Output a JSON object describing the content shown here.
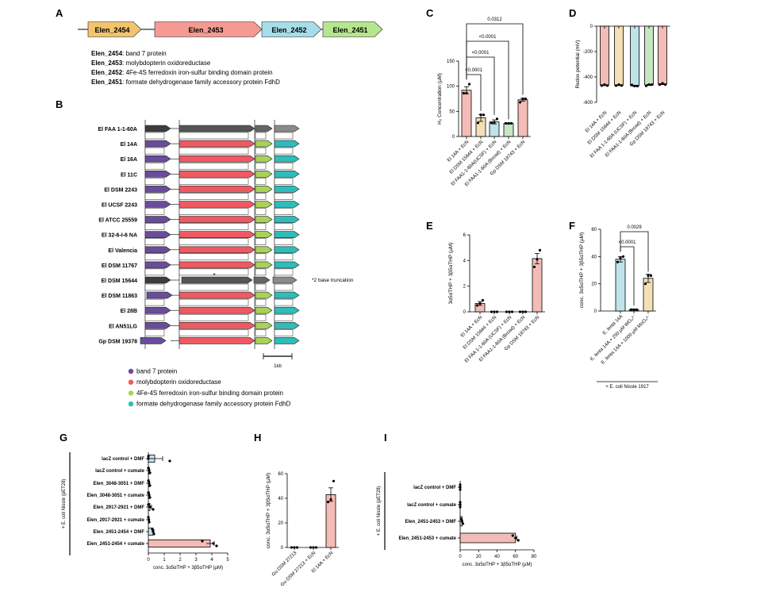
{
  "panel_letters": [
    "A",
    "B",
    "C",
    "D",
    "E",
    "F",
    "G",
    "H",
    "I"
  ],
  "panel_a": {
    "genes": [
      {
        "name": "Elen_2454",
        "color": "#f2c46e"
      },
      {
        "name": "Elen_2453",
        "color": "#f59a93"
      },
      {
        "name": "Elen_2452",
        "color": "#a6dde8"
      },
      {
        "name": "Elen_2451",
        "color": "#b5e68f"
      }
    ],
    "descriptions": [
      {
        "gene": "Elen_2454",
        "text": ": band 7 protein"
      },
      {
        "gene": "Elen_2453",
        "text": ": molybdopterin oxidoreductase"
      },
      {
        "gene": "Elen_2452",
        "text": ": 4Fe-4S ferredoxin iron-sulfur binding domain protein"
      },
      {
        "gene": "Elen_2451",
        "text": ": formate dehydrogenase family accessory protein FdhD"
      }
    ]
  },
  "panel_b": {
    "strains": [
      "El FAA 1-1-60A",
      "El 14A",
      "El 16A",
      "El 11C",
      "El DSM 2243",
      "El UCSF 2243",
      "El ATCC 25559",
      "El 32-6-I-6 NA",
      "El Valencia",
      "El DSM 11767",
      "El DSM 15644",
      "El DSM 11863",
      "El 28B",
      "El AN51LG",
      "Gp DSM 19378"
    ],
    "grey_strains": [
      "El FAA 1-1-60A",
      "El DSM 15644"
    ],
    "asterisk": "*",
    "note": "*2 base truncation",
    "scale_label": "1kb",
    "legend": [
      {
        "label": "band 7 protein",
        "color": "#6a4c9c"
      },
      {
        "label": "molybdopterin oxidoreductase",
        "color": "#ef5a62"
      },
      {
        "label": "4Fe-4S ferredoxin iron-sulfur binding domain protein",
        "color": "#a8d25a"
      },
      {
        "label": "formate dehydrogenase family accessory protein FdhD",
        "color": "#2ebdbb"
      }
    ],
    "grey_colors": [
      "#3d3d3d",
      "#555555",
      "#666666",
      "#8a8a8a"
    ]
  },
  "chart_data": [
    {
      "panel": "C",
      "type": "bar",
      "ylabel": "H₂ Concentration (µM)",
      "ylim": [
        0,
        150
      ],
      "yticks": [
        0,
        50,
        100,
        150
      ],
      "categories": [
        "El 14A + EcN",
        "El DSM 15644 + EcN",
        "El FAA1-1-60A(UCSF) + EcN",
        "El FAA1-1-60A (Broad) + EcN",
        "Gp DSM 19743 + EcN"
      ],
      "values": [
        92,
        37,
        29,
        26,
        73
      ],
      "sem": [
        7,
        7,
        4,
        1,
        3
      ],
      "points": [
        [
          86,
          86,
          104
        ],
        [
          27,
          43,
          43
        ],
        [
          27,
          28,
          35
        ],
        [
          26,
          26,
          26
        ],
        [
          68,
          75,
          75
        ]
      ],
      "colors": [
        "#f4bcb6",
        "#f5dfb8",
        "#bfe3ea",
        "#c9e6c2",
        "#f4bcb6"
      ],
      "comparisons": [
        {
          "from": 0,
          "to": 1,
          "label": "<0.0001"
        },
        {
          "from": 0,
          "to": 2,
          "label": "<0.0001"
        },
        {
          "from": 0,
          "to": 3,
          "label": "<0.0001"
        },
        {
          "from": 0,
          "to": 4,
          "label": "0.0312"
        }
      ]
    },
    {
      "panel": "D",
      "type": "bar",
      "ylabel": "Redox potential (mV)",
      "ylim": [
        -600,
        0
      ],
      "yticks": [
        0,
        -200,
        -400,
        -600
      ],
      "categories": [
        "El 14A + EcN",
        "El DSM 15644 + EcN",
        "El FAA 1-1-60A (UCSF) + EcN",
        "El FAA1-1-60A (Broad) + EcN",
        "Gp DSM 19743 + EcN"
      ],
      "values": [
        -465,
        -465,
        -470,
        -463,
        -457
      ],
      "sem": [
        3,
        3,
        4,
        4,
        3
      ],
      "points": [
        [
          -468,
          -460,
          -468
        ],
        [
          -468,
          -460,
          -467
        ],
        [
          -462,
          -472,
          -472
        ],
        [
          -470,
          -460,
          -460
        ],
        [
          -460,
          -450,
          -460
        ]
      ],
      "colors": [
        "#f4bcb6",
        "#f5dfb8",
        "#bfe3ea",
        "#c9e6c2",
        "#f4bcb6"
      ],
      "comparisons": []
    },
    {
      "panel": "E",
      "type": "bar",
      "ylabel": "3α5αTHP + 3β5αTHP (µM)",
      "ylim": [
        0,
        6
      ],
      "yticks": [
        0,
        2,
        4,
        6
      ],
      "categories": [
        "El 14A + EcN",
        "El DSM 15644 + EcN",
        "El FAA 1-1-60A (UCSF) + EcN",
        "El FAA1-1-60A (Broad) + EcN",
        "Gp DSM 19743 + EcN"
      ],
      "values": [
        0.65,
        0,
        0,
        0,
        4.15
      ],
      "sem": [
        0.15,
        0,
        0,
        0,
        0.4
      ],
      "points": [
        [
          0.5,
          0.65,
          0.9
        ],
        [
          0,
          0,
          0
        ],
        [
          0,
          0,
          0
        ],
        [
          0,
          0,
          0
        ],
        [
          3.5,
          4.1,
          4.8
        ]
      ],
      "colors": [
        "#f4bcb6",
        "#f4bcb6",
        "#f4bcb6",
        "#f4bcb6",
        "#f4bcb6"
      ],
      "comparisons": []
    },
    {
      "panel": "F",
      "type": "bar",
      "ylabel": "conc. 3α5αTHP + 3β5αTHP (µM)",
      "ylim": [
        0,
        60
      ],
      "yticks": [
        0,
        20,
        40,
        60
      ],
      "categories": [
        "E. lenta 14A",
        "E. lenta 14A + 250 µM WO₄²⁻",
        "E. lenta 14A + 1000 µM MoO₄²⁻"
      ],
      "values": [
        38,
        1,
        24
      ],
      "sem": [
        2,
        0.3,
        3
      ],
      "points": [
        [
          36,
          39,
          40
        ],
        [
          1,
          1,
          1
        ],
        [
          20,
          26,
          26
        ]
      ],
      "colors": [
        "#bfe3ea",
        "#bfe3ea",
        "#f5dfb8"
      ],
      "comparisons": [
        {
          "from": 0,
          "to": 1,
          "label": "<0.0001"
        },
        {
          "from": 0,
          "to": 2,
          "label": "0.0029"
        }
      ],
      "group_label": "+ E. coli Nissle 1917"
    },
    {
      "panel": "G",
      "type": "hbar",
      "xlabel": "conc. 3α5αTHP + 3β5αTHP (µM)",
      "xlim": [
        0,
        5
      ],
      "xticks": [
        0,
        1,
        2,
        3,
        4,
        5
      ],
      "categories": [
        "lacZ control + DMF",
        "lacZ control + cumate",
        "Elen_3048-3051 + DMF",
        "Elen_3048-3051 + cumate",
        "Elen_2917-2921 + DMF",
        "Elen_2917-2921 + cumate",
        "Elen_2451-2454 + DMF",
        "Elen_2451-2454 + cumate"
      ],
      "values": [
        0.4,
        0.05,
        0.05,
        0.05,
        0.1,
        0.03,
        0.3,
        3.9
      ],
      "sem": [
        0.5,
        0.03,
        0.03,
        0.03,
        0.1,
        0.02,
        0.05,
        0.25
      ],
      "points": [
        [
          0,
          0,
          1.35
        ],
        [
          0,
          0.05,
          0.1
        ],
        [
          0,
          0.05,
          0.1
        ],
        [
          0,
          0.05,
          0.1
        ],
        [
          0,
          0.1,
          0.3
        ],
        [
          0,
          0.03,
          0.05
        ],
        [
          0.25,
          0.3,
          0.35
        ],
        [
          3.4,
          4.1,
          4.3
        ]
      ],
      "colors": [
        "#bfe3ea",
        "#bfe3ea",
        "#bfe3ea",
        "#bfe3ea",
        "#bfe3ea",
        "#bfe3ea",
        "#bfe3ea",
        "#f4bcb6"
      ],
      "group_label": "+ E. coli Nissle (pET28)"
    },
    {
      "panel": "H",
      "type": "bar",
      "ylabel": "conc. 3α5αTHP + 3β5αTHP (µM)",
      "ylim": [
        0,
        60
      ],
      "yticks": [
        0,
        20,
        40,
        60
      ],
      "categories": [
        "Gu DSM 27213",
        "Gu DSM 27213 + EcN",
        "El 14A + EcN"
      ],
      "values": [
        0,
        0,
        43
      ],
      "sem": [
        0,
        0,
        5.5
      ],
      "points": [
        [
          0,
          0,
          0
        ],
        [
          0,
          0,
          0
        ],
        [
          37,
          39,
          54
        ]
      ],
      "colors": [
        "#f4bcb6",
        "#f4bcb6",
        "#f4bcb6"
      ],
      "comparisons": []
    },
    {
      "panel": "I",
      "type": "hbar",
      "xlabel": "conc. 3α5αTHP + 3β5αTHP (µM)",
      "xlim": [
        0,
        80
      ],
      "xticks": [
        0,
        20,
        40,
        60,
        80
      ],
      "categories": [
        "lacZ control + DMF",
        "lacZ control + cumate",
        "Elen_2451-2453 + DMF",
        "Elen_2451-2453 + cumate"
      ],
      "values": [
        0,
        0,
        2,
        60
      ],
      "sem": [
        0,
        0,
        0.5,
        1.5
      ],
      "points": [
        [
          0,
          0,
          0
        ],
        [
          0,
          0,
          0
        ],
        [
          1,
          2,
          3
        ],
        [
          57,
          60,
          63
        ]
      ],
      "colors": [
        "#bfe3ea",
        "#bfe3ea",
        "#bfe3ea",
        "#f4bcb6"
      ],
      "group_label": "+ E. coli Nissle (pET28)"
    }
  ]
}
